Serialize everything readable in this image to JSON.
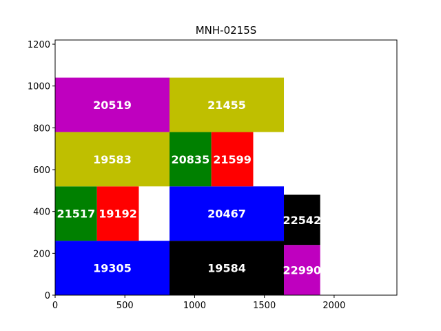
{
  "chart_data": {
    "type": "treemap-rectangles",
    "title": "MNH-0215S",
    "xlim": [
      0,
      2450
    ],
    "ylim": [
      0,
      1220
    ],
    "x_ticks": [
      0,
      500,
      1000,
      1500,
      2000
    ],
    "y_ticks": [
      0,
      200,
      400,
      600,
      800,
      1000,
      1200
    ],
    "grid": false,
    "colors": {
      "blue": "#0000ff",
      "black": "#000000",
      "magenta": "#bf00bf",
      "green": "#008000",
      "red": "#ff0000",
      "olive": "#bfbf00"
    },
    "rectangles": [
      {
        "label": "19305",
        "x0": 0,
        "x1": 820,
        "y0": 0,
        "y1": 260,
        "color": "#0000ff"
      },
      {
        "label": "19584",
        "x0": 820,
        "x1": 1640,
        "y0": 0,
        "y1": 260,
        "color": "#000000"
      },
      {
        "label": "22990",
        "x0": 1640,
        "x1": 1900,
        "y0": 0,
        "y1": 240,
        "color": "#bf00bf"
      },
      {
        "label": "22542",
        "x0": 1640,
        "x1": 1900,
        "y0": 240,
        "y1": 480,
        "color": "#000000"
      },
      {
        "label": "21517",
        "x0": 0,
        "x1": 300,
        "y0": 260,
        "y1": 520,
        "color": "#008000"
      },
      {
        "label": "19192",
        "x0": 300,
        "x1": 600,
        "y0": 260,
        "y1": 520,
        "color": "#ff0000"
      },
      {
        "label": "20467",
        "x0": 820,
        "x1": 1640,
        "y0": 260,
        "y1": 520,
        "color": "#0000ff"
      },
      {
        "label": "19583",
        "x0": 0,
        "x1": 820,
        "y0": 520,
        "y1": 780,
        "color": "#bfbf00"
      },
      {
        "label": "20835",
        "x0": 820,
        "x1": 1120,
        "y0": 520,
        "y1": 780,
        "color": "#008000"
      },
      {
        "label": "21599",
        "x0": 1120,
        "x1": 1420,
        "y0": 520,
        "y1": 780,
        "color": "#ff0000"
      },
      {
        "label": "20519",
        "x0": 0,
        "x1": 820,
        "y0": 780,
        "y1": 1040,
        "color": "#bf00bf"
      },
      {
        "label": "21455",
        "x0": 820,
        "x1": 1640,
        "y0": 780,
        "y1": 1040,
        "color": "#bfbf00"
      }
    ]
  }
}
